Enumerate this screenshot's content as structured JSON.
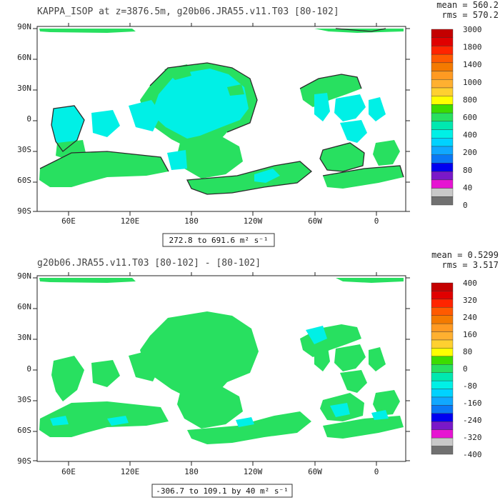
{
  "panels": [
    {
      "title": "KAPPA_ISOP at z=3876.5m, g20b06.JRA55.v11.T03 [80-102]",
      "stats": {
        "mean": "mean = 560.2",
        "rms": "rms = 570.2"
      },
      "range_label": "272.8 to 691.6 m² s⁻¹",
      "colorbar": {
        "labels": [
          "3000",
          "1800",
          "1400",
          "1000",
          "800",
          "600",
          "400",
          "200",
          "80",
          "40",
          "0"
        ],
        "colors": [
          "#c40000",
          "#e00000",
          "#ff2400",
          "#ff5a00",
          "#f47a00",
          "#ff9a22",
          "#ffb030",
          "#ffd030",
          "#ffff00",
          "#3cdc00",
          "#28e060",
          "#00e8b0",
          "#00f0e6",
          "#00d2ff",
          "#10a8ff",
          "#0a78f5",
          "#0000f0",
          "#7a18c8",
          "#e614d2",
          "#c8c8c8",
          "#707070"
        ]
      }
    },
    {
      "title": "g20b06.JRA55.v11.T03 [80-102] -  [80-102]",
      "stats": {
        "mean": "mean = 0.5299",
        "rms": "rms = 3.517"
      },
      "range_label": "-306.7 to 109.1 by 40 m² s⁻¹",
      "colorbar": {
        "labels": [
          "400",
          "320",
          "240",
          "160",
          "80",
          "0",
          "-80",
          "-160",
          "-240",
          "-320",
          "-400"
        ],
        "colors": [
          "#c40000",
          "#e00000",
          "#ff2400",
          "#ff5a00",
          "#f47a00",
          "#ff9a22",
          "#ffb030",
          "#ffd030",
          "#ffff00",
          "#3cdc00",
          "#28e060",
          "#00e8b0",
          "#00f0e6",
          "#00d2ff",
          "#10a8ff",
          "#0a78f5",
          "#0000f0",
          "#7a18c8",
          "#e614d2",
          "#c8c8c8",
          "#707070"
        ]
      }
    }
  ],
  "axes": {
    "lat_labels": [
      "90N",
      "60N",
      "30N",
      "0",
      "30S",
      "60S",
      "90S"
    ],
    "lon_labels": [
      "60E",
      "120E",
      "180",
      "120W",
      "60W",
      "0"
    ]
  },
  "chart_data": [
    {
      "type": "heatmap",
      "title": "KAPPA_ISOP at z=3876.5m, g20b06.JRA55.v11.T03 [80-102]",
      "units": "m² s⁻¹",
      "range": [
        272.8,
        691.6
      ],
      "mean": 560.2,
      "rms": 570.2,
      "levels": [
        0,
        40,
        80,
        200,
        400,
        600,
        800,
        1000,
        1400,
        1800,
        3000
      ],
      "dominant_color": "#00f0e6",
      "ocean_color": "#28e060"
    },
    {
      "type": "heatmap",
      "title": "g20b06.JRA55.v11.T03 [80-102] -  [80-102]",
      "units": "m² s⁻¹",
      "range": [
        -306.7,
        109.1
      ],
      "contour_interval": 40,
      "mean": 0.5299,
      "rms": 3.517,
      "levels": [
        -400,
        -320,
        -240,
        -160,
        -80,
        0,
        80,
        160,
        240,
        320,
        400
      ],
      "dominant_color": "#28e060",
      "anomaly_color": "#00f0e6"
    }
  ]
}
